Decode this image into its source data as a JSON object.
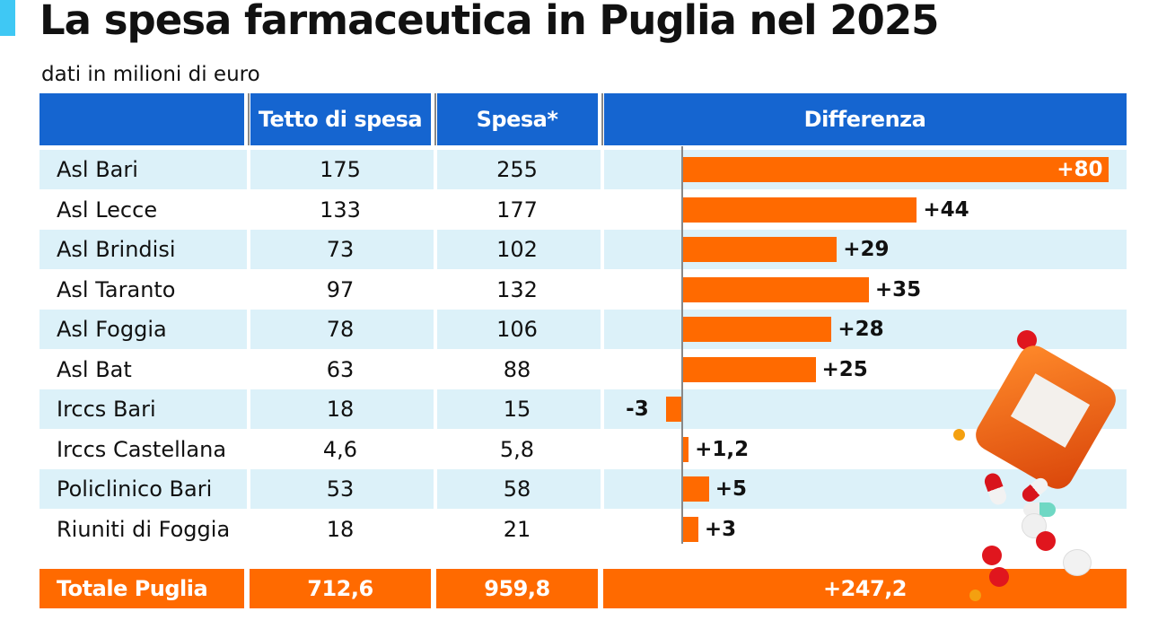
{
  "title": "La spesa farmaceutica in Puglia nel 2025",
  "subtitle": "dati in milioni di euro",
  "colors": {
    "header": "#1565d0",
    "bar": "#ff6a00",
    "stripe": "#dcf1f9",
    "accent": "#3fc8f4"
  },
  "headers": [
    "",
    "Tetto di spesa",
    "Spesa*",
    "Differenza"
  ],
  "rows": [
    {
      "name": "Asl Bari",
      "tetto": "175",
      "spesa": "255",
      "diff": "+80"
    },
    {
      "name": "Asl Lecce",
      "tetto": "133",
      "spesa": "177",
      "diff": "+44"
    },
    {
      "name": "Asl Brindisi",
      "tetto": "73",
      "spesa": "102",
      "diff": "+29"
    },
    {
      "name": "Asl Taranto",
      "tetto": "97",
      "spesa": "132",
      "diff": "+35"
    },
    {
      "name": "Asl Foggia",
      "tetto": "78",
      "spesa": "106",
      "diff": "+28"
    },
    {
      "name": "Asl Bat",
      "tetto": "63",
      "spesa": "88",
      "diff": "+25"
    },
    {
      "name": "Irccs Bari",
      "tetto": "18",
      "spesa": "15",
      "diff": "-3"
    },
    {
      "name": "Irccs Castellana",
      "tetto": "4,6",
      "spesa": "5,8",
      "diff": "+1,2"
    },
    {
      "name": "Policlinico Bari",
      "tetto": "53",
      "spesa": "58",
      "diff": "+5"
    },
    {
      "name": "Riuniti di Foggia",
      "tetto": "18",
      "spesa": "21",
      "diff": "+3"
    }
  ],
  "total": {
    "name": "Totale Puglia",
    "tetto": "712,6",
    "spesa": "959,8",
    "diff": "+247,2"
  },
  "chart_data": {
    "type": "bar",
    "orientation": "horizontal",
    "categories": [
      "Asl Bari",
      "Asl Lecce",
      "Asl Brindisi",
      "Asl Taranto",
      "Asl Foggia",
      "Asl Bat",
      "Irccs Bari",
      "Irccs Castellana",
      "Policlinico Bari",
      "Riuniti di Foggia"
    ],
    "values": [
      80,
      44,
      29,
      35,
      28,
      25,
      -3,
      1.2,
      5,
      3
    ],
    "title": "La spesa farmaceutica in Puglia nel 2025",
    "xlabel": "Differenza",
    "ylabel": ""
  }
}
